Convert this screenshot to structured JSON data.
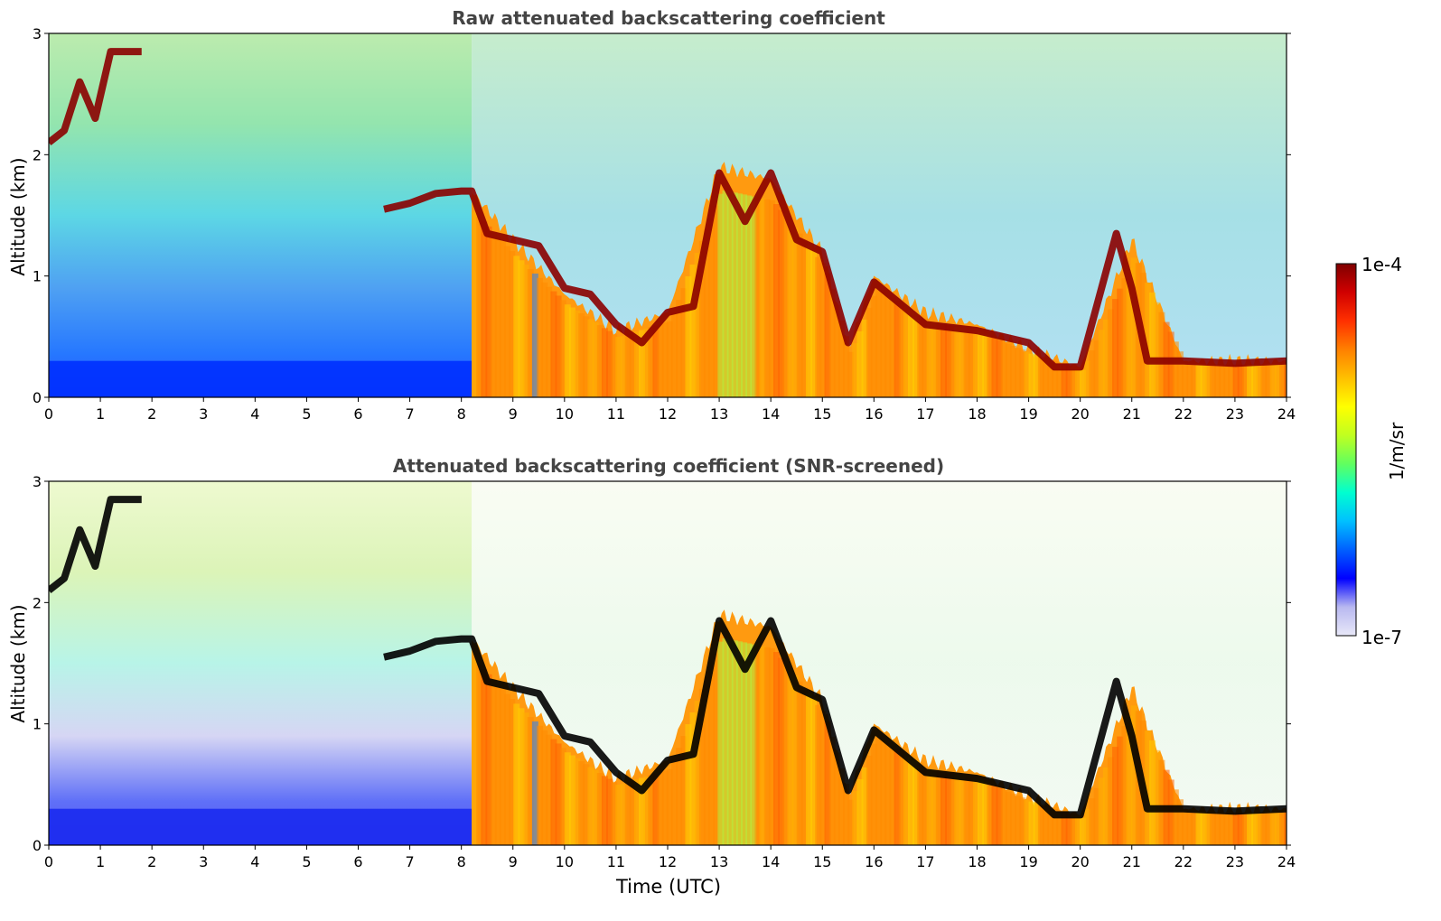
{
  "chart_data": [
    {
      "type": "heatmap",
      "title": "Raw attenuated backscattering coefficient",
      "xlabel": "",
      "ylabel": "Altitude (km)",
      "xlim": [
        0,
        24
      ],
      "ylim": [
        0,
        3
      ],
      "x_ticks": [
        0,
        1,
        2,
        3,
        4,
        5,
        6,
        7,
        8,
        9,
        10,
        11,
        12,
        13,
        14,
        15,
        16,
        17,
        18,
        19,
        20,
        21,
        22,
        23,
        24
      ],
      "y_ticks": [
        0,
        1,
        2,
        3
      ],
      "colorscale": "jet",
      "boundary_layer_top_km": {
        "x": [
          0,
          0.3,
          0.6,
          0.9,
          1.2,
          1.5,
          1.8,
          2.0,
          6.5,
          7.0,
          7.5,
          8.0,
          8.2,
          8.5,
          9.0,
          9.5,
          10.0,
          10.5,
          11.0,
          11.5,
          12.0,
          12.5,
          13.0,
          13.5,
          14.0,
          14.5,
          15.0,
          15.5,
          16.0,
          17.0,
          18.0,
          19.0,
          19.5,
          20.0,
          20.7,
          21.0,
          21.3,
          22.0,
          23.0,
          24.0
        ],
        "y": [
          2.1,
          2.2,
          2.6,
          2.3,
          2.85,
          2.85,
          2.85,
          null,
          1.55,
          1.6,
          1.68,
          1.7,
          1.7,
          1.35,
          1.3,
          1.25,
          0.9,
          0.85,
          0.6,
          0.45,
          0.7,
          0.75,
          1.85,
          1.45,
          1.85,
          1.3,
          1.2,
          0.45,
          0.95,
          0.6,
          0.55,
          0.45,
          0.25,
          0.25,
          1.35,
          0.9,
          0.3,
          0.3,
          0.28,
          0.3
        ]
      },
      "aerosol_layer_top_km": {
        "x": [
          8.2,
          9.0,
          10.0,
          11.0,
          12.0,
          13.0,
          14.0,
          15.0,
          15.5,
          16.0,
          17.0,
          18.0,
          19.0,
          20.0,
          21.0,
          22.0,
          23.0,
          24.0
        ],
        "y": [
          1.7,
          1.3,
          0.85,
          0.55,
          0.7,
          1.9,
          1.8,
          1.2,
          0.4,
          1.0,
          0.7,
          0.6,
          0.4,
          0.25,
          1.3,
          0.3,
          0.3,
          0.3
        ]
      }
    },
    {
      "type": "heatmap",
      "title": "Attenuated backscattering coefficient (SNR-screened)",
      "xlabel": "Time (UTC)",
      "ylabel": "Altitude (km)",
      "xlim": [
        0,
        24
      ],
      "ylim": [
        0,
        3
      ],
      "x_ticks": [
        0,
        1,
        2,
        3,
        4,
        5,
        6,
        7,
        8,
        9,
        10,
        11,
        12,
        13,
        14,
        15,
        16,
        17,
        18,
        19,
        20,
        21,
        22,
        23,
        24
      ],
      "y_ticks": [
        0,
        1,
        2,
        3
      ],
      "colorscale": "jet",
      "boundary_layer_top_km": {
        "x": [
          0,
          0.3,
          0.6,
          0.9,
          1.2,
          1.5,
          1.8,
          2.0,
          6.5,
          7.0,
          7.5,
          8.0,
          8.2,
          8.5,
          9.0,
          9.5,
          10.0,
          10.5,
          11.0,
          11.5,
          12.0,
          12.5,
          13.0,
          13.5,
          14.0,
          14.5,
          15.0,
          15.5,
          16.0,
          17.0,
          18.0,
          19.0,
          19.5,
          20.0,
          20.7,
          21.0,
          21.3,
          22.0,
          23.0,
          24.0
        ],
        "y": [
          2.1,
          2.2,
          2.6,
          2.3,
          2.85,
          2.85,
          2.85,
          null,
          1.55,
          1.6,
          1.68,
          1.7,
          1.7,
          1.35,
          1.3,
          1.25,
          0.9,
          0.85,
          0.6,
          0.45,
          0.7,
          0.75,
          1.85,
          1.45,
          1.85,
          1.3,
          1.2,
          0.45,
          0.95,
          0.6,
          0.55,
          0.45,
          0.25,
          0.25,
          1.35,
          0.9,
          0.3,
          0.3,
          0.28,
          0.3
        ]
      },
      "aerosol_layer_top_km": {
        "x": [
          8.2,
          9.0,
          10.0,
          11.0,
          12.0,
          13.0,
          14.0,
          15.0,
          15.5,
          16.0,
          17.0,
          18.0,
          19.0,
          20.0,
          21.0,
          22.0,
          23.0,
          24.0
        ],
        "y": [
          1.7,
          1.3,
          0.85,
          0.55,
          0.7,
          1.9,
          1.8,
          1.2,
          0.4,
          1.0,
          0.7,
          0.6,
          0.4,
          0.25,
          1.3,
          0.3,
          0.3,
          0.3
        ]
      }
    }
  ],
  "colorbar": {
    "max_label": "1e-4",
    "min_label": "1e-7",
    "unit": "1/m/sr",
    "colors": [
      "#e8e8f8",
      "#b8b8f0",
      "#0000ff",
      "#0060ff",
      "#00c0ff",
      "#00ffd0",
      "#60ff60",
      "#c0ff20",
      "#ffff00",
      "#ffc000",
      "#ff8000",
      "#ff3000",
      "#d00000",
      "#7f0000"
    ]
  }
}
